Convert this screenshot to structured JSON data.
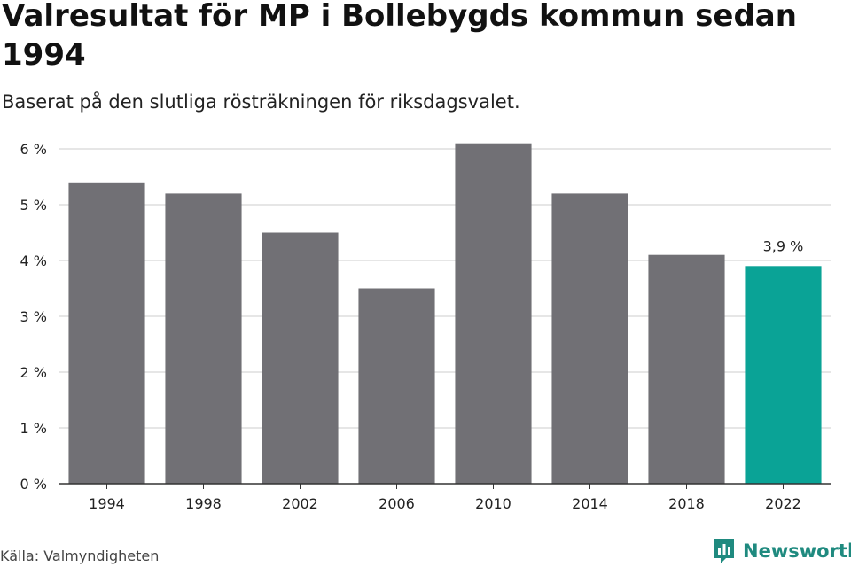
{
  "header": {
    "title": "Valresultat för MP i Bollebygds kommun sedan 1994",
    "subtitle": "Baserat på den slutliga rösträkningen för riksdagsvalet."
  },
  "footer": {
    "source": "Källa: Valmyndigheten",
    "brand": "Newsworthy"
  },
  "colors": {
    "bar": "#717075",
    "highlight": "#0aa396",
    "grid": "#dddddd",
    "axis": "#333333",
    "brand": "#1f8a7f"
  },
  "chart_data": {
    "type": "bar",
    "categories": [
      "1994",
      "1998",
      "2002",
      "2006",
      "2010",
      "2014",
      "2018",
      "2022"
    ],
    "values": [
      5.4,
      5.2,
      4.5,
      3.5,
      6.1,
      5.2,
      4.1,
      3.9
    ],
    "unit": "%",
    "ylim": [
      0,
      6
    ],
    "yticks": [
      0,
      1,
      2,
      3,
      4,
      5,
      6
    ],
    "ytick_labels": [
      "0 %",
      "1 %",
      "2 %",
      "3 %",
      "4 %",
      "5 %",
      "6 %"
    ],
    "highlight_index": 7,
    "highlight_label": "3,9 %",
    "grid": true,
    "legend": "none"
  }
}
